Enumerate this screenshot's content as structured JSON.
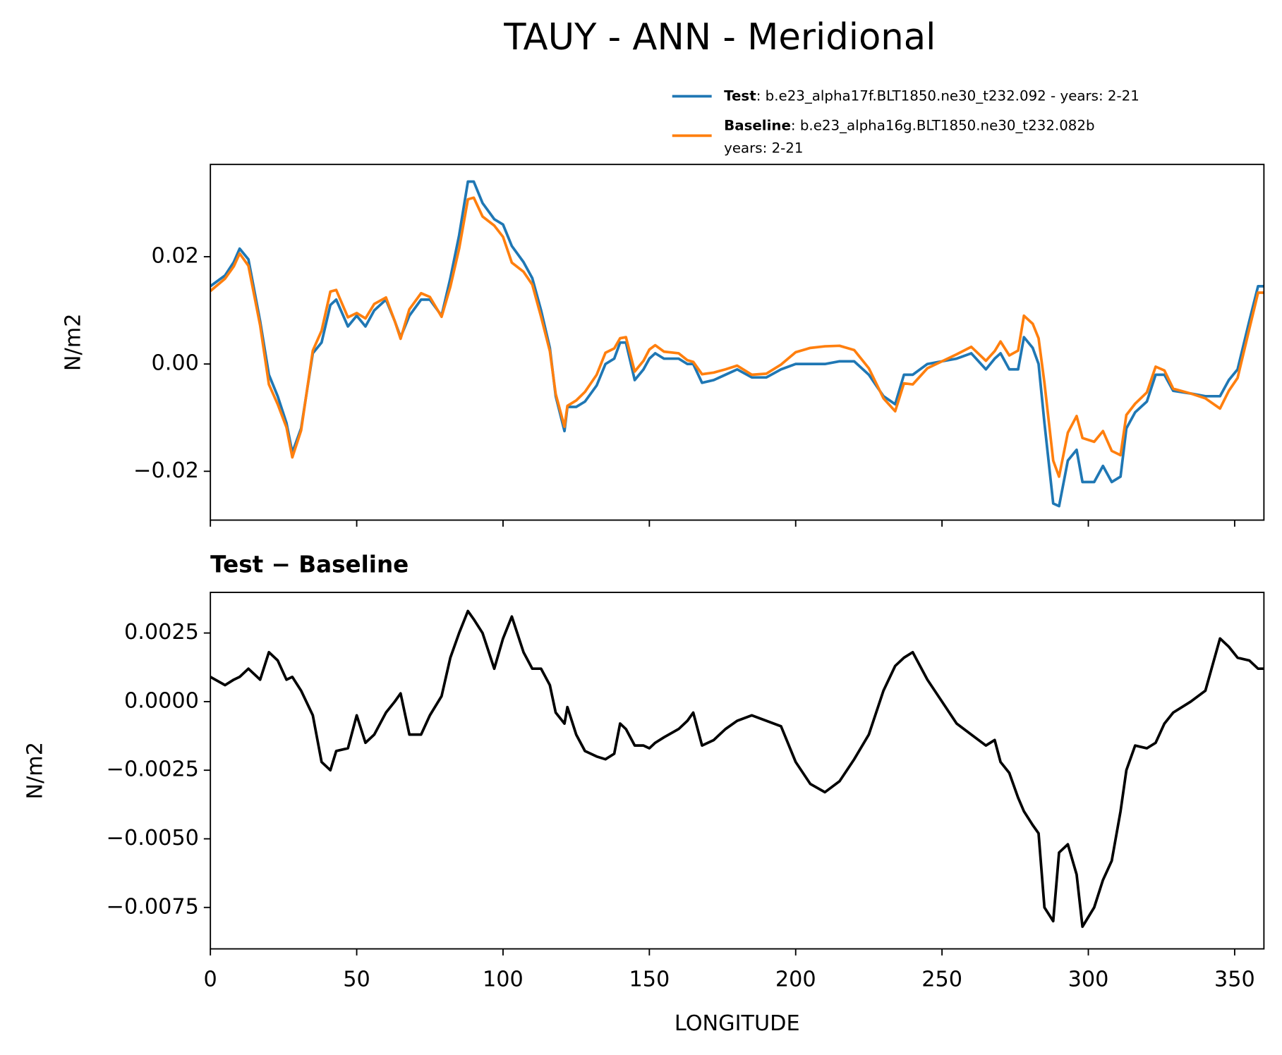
{
  "title": "TAUY - ANN - Meridional",
  "chart_data": [
    {
      "type": "line",
      "ylabel": "N/m2",
      "xlim": [
        0,
        360
      ],
      "xticks": [
        0,
        50,
        100,
        150,
        200,
        250,
        300,
        350
      ],
      "ylim": [
        -0.0291,
        0.0372
      ],
      "yticks": [
        {
          "value": -0.02,
          "label": "−0.02"
        },
        {
          "value": 0,
          "label": "0.00"
        },
        {
          "value": 0.02,
          "label": "0.02"
        }
      ],
      "x": [
        0,
        5,
        8,
        10,
        13,
        17,
        20,
        23,
        26,
        28,
        31,
        35,
        38,
        41,
        43,
        47,
        50,
        53,
        56,
        60,
        63,
        65,
        68,
        72,
        75,
        79,
        82,
        85,
        88,
        90,
        93,
        97,
        100,
        103,
        107,
        110,
        113,
        116,
        118,
        121,
        122,
        125,
        128,
        132,
        135,
        138,
        140,
        142,
        145,
        148,
        150,
        152,
        155,
        160,
        163,
        165,
        168,
        172,
        176,
        180,
        185,
        190,
        195,
        200,
        205,
        210,
        215,
        220,
        225,
        230,
        234,
        237,
        240,
        245,
        250,
        255,
        260,
        265,
        268,
        270,
        273,
        276,
        278,
        281,
        283,
        285,
        288,
        290,
        293,
        296,
        298,
        302,
        305,
        308,
        311,
        313,
        316,
        320,
        323,
        326,
        329,
        335,
        340,
        345,
        348,
        351,
        355,
        358,
        360
      ],
      "series": [
        {
          "name": "Test",
          "description": ": b.e23_alpha17f.BLT1850.ne30_t232.092 - years: 2-21",
          "color": "#1f77b4",
          "values": [
            0.0145,
            0.0165,
            0.019,
            0.0215,
            0.0195,
            0.008,
            -0.002,
            -0.006,
            -0.011,
            -0.0165,
            -0.012,
            0.002,
            0.004,
            0.011,
            0.012,
            0.007,
            0.009,
            0.007,
            0.01,
            0.012,
            0.008,
            0.005,
            0.009,
            0.012,
            0.012,
            0.009,
            0.016,
            0.024,
            0.034,
            0.034,
            0.03,
            0.027,
            0.026,
            0.022,
            0.019,
            0.016,
            0.01,
            0.003,
            -0.006,
            -0.0125,
            -0.008,
            -0.008,
            -0.007,
            -0.004,
            0.0,
            0.001,
            0.004,
            0.004,
            -0.003,
            -0.001,
            0.001,
            0.002,
            0.001,
            0.001,
            0.0,
            0.0,
            -0.0035,
            -0.003,
            -0.002,
            -0.001,
            -0.0025,
            -0.0025,
            -0.001,
            0.0,
            0.0,
            0.0,
            0.0005,
            0.0005,
            -0.002,
            -0.006,
            -0.0075,
            -0.002,
            -0.002,
            0.0,
            0.0005,
            0.001,
            0.002,
            -0.001,
            0.001,
            0.002,
            -0.001,
            -0.001,
            0.005,
            0.003,
            0.0,
            -0.011,
            -0.026,
            -0.0265,
            -0.018,
            -0.016,
            -0.022,
            -0.022,
            -0.019,
            -0.022,
            -0.021,
            -0.012,
            -0.009,
            -0.007,
            -0.002,
            -0.002,
            -0.005,
            -0.0055,
            -0.006,
            -0.006,
            -0.003,
            -0.001,
            0.008,
            0.0145,
            0.0145
          ]
        },
        {
          "name": "Baseline",
          "description": [
            ": b.e23_alpha16g.BLT1850.ne30_t232.082b",
            "years: 2-21"
          ],
          "color": "#ff7f0e",
          "values": [
            0.0136,
            0.0159,
            0.0182,
            0.0206,
            0.0183,
            0.0072,
            -0.0038,
            -0.0075,
            -0.0118,
            -0.0174,
            -0.0124,
            0.0025,
            0.0062,
            0.0135,
            0.0138,
            0.0087,
            0.0095,
            0.0085,
            0.0112,
            0.0124,
            0.008,
            0.0047,
            0.0102,
            0.0132,
            0.0125,
            0.0088,
            0.0144,
            0.0215,
            0.0307,
            0.031,
            0.0275,
            0.0258,
            0.0237,
            0.0189,
            0.0172,
            0.0148,
            0.0088,
            0.0024,
            -0.0056,
            -0.0117,
            -0.0078,
            -0.0068,
            -0.0052,
            -0.002,
            0.0021,
            0.0029,
            0.0048,
            0.005,
            -0.0014,
            0.0006,
            0.0027,
            0.0035,
            0.0023,
            0.002,
            0.0007,
            0.0004,
            -0.0019,
            -0.0016,
            -0.001,
            -0.0003,
            -0.002,
            -0.0018,
            -0.0001,
            0.0022,
            0.003,
            0.0033,
            0.0034,
            0.0026,
            -0.0008,
            -0.0064,
            -0.0088,
            -0.0036,
            -0.0038,
            -0.0008,
            0.0005,
            0.0018,
            0.0032,
            0.0006,
            0.0024,
            0.0042,
            0.0016,
            0.0025,
            0.009,
            0.0075,
            0.0048,
            -0.0035,
            -0.018,
            -0.021,
            -0.0128,
            -0.0097,
            -0.0138,
            -0.0145,
            -0.0125,
            -0.0162,
            -0.017,
            -0.0095,
            -0.0074,
            -0.0053,
            -0.0005,
            -0.0012,
            -0.0046,
            -0.0055,
            -0.0064,
            -0.0083,
            -0.005,
            -0.0026,
            0.0065,
            0.0133,
            0.0133
          ]
        }
      ]
    },
    {
      "type": "line",
      "title": "Test − Baseline",
      "ylabel": "N/m2",
      "xlabel": "LONGITUDE",
      "xlim": [
        0,
        360
      ],
      "xticks": [
        0,
        50,
        100,
        150,
        200,
        250,
        300,
        350
      ],
      "ylim": [
        -0.00901,
        0.00398
      ],
      "yticks": [
        {
          "value": -0.0075,
          "label": "−0.0075"
        },
        {
          "value": -0.005,
          "label": "−0.0050"
        },
        {
          "value": -0.0025,
          "label": "−0.0025"
        },
        {
          "value": 0,
          "label": "0.0000"
        },
        {
          "value": 0.0025,
          "label": "0.0025"
        }
      ],
      "x": [
        0,
        5,
        8,
        10,
        13,
        17,
        20,
        23,
        26,
        28,
        31,
        35,
        38,
        41,
        43,
        47,
        50,
        53,
        56,
        60,
        63,
        65,
        68,
        72,
        75,
        79,
        82,
        85,
        88,
        90,
        93,
        97,
        100,
        103,
        107,
        110,
        113,
        116,
        118,
        121,
        122,
        125,
        128,
        132,
        135,
        138,
        140,
        142,
        145,
        148,
        150,
        152,
        155,
        160,
        163,
        165,
        168,
        172,
        176,
        180,
        185,
        190,
        195,
        200,
        205,
        210,
        215,
        220,
        225,
        230,
        234,
        237,
        240,
        245,
        250,
        255,
        260,
        265,
        268,
        270,
        273,
        276,
        278,
        281,
        283,
        285,
        288,
        290,
        293,
        296,
        298,
        302,
        305,
        308,
        311,
        313,
        316,
        320,
        323,
        326,
        329,
        335,
        340,
        345,
        348,
        351,
        355,
        358,
        360
      ],
      "color": "#000000",
      "values": [
        0.0009,
        0.0006,
        0.0008,
        0.0009,
        0.0012,
        0.0008,
        0.0018,
        0.0015,
        0.0008,
        0.0009,
        0.0004,
        -0.0005,
        -0.0022,
        -0.0025,
        -0.0018,
        -0.0017,
        -0.0005,
        -0.0015,
        -0.0012,
        -0.0004,
        0.0,
        0.0003,
        -0.0012,
        -0.0012,
        -0.0005,
        0.0002,
        0.0016,
        0.0025,
        0.0033,
        0.003,
        0.0025,
        0.0012,
        0.0023,
        0.0031,
        0.0018,
        0.0012,
        0.0012,
        0.0006,
        -0.0004,
        -0.0008,
        -0.0002,
        -0.0012,
        -0.0018,
        -0.002,
        -0.0021,
        -0.0019,
        -0.0008,
        -0.001,
        -0.0016,
        -0.0016,
        -0.0017,
        -0.0015,
        -0.0013,
        -0.001,
        -0.0007,
        -0.0004,
        -0.0016,
        -0.0014,
        -0.001,
        -0.0007,
        -0.0005,
        -0.0007,
        -0.0009,
        -0.0022,
        -0.003,
        -0.0033,
        -0.0029,
        -0.0021,
        -0.0012,
        0.0004,
        0.0013,
        0.0016,
        0.0018,
        0.0008,
        0.0,
        -0.0008,
        -0.0012,
        -0.0016,
        -0.0014,
        -0.0022,
        -0.0026,
        -0.0035,
        -0.004,
        -0.0045,
        -0.0048,
        -0.0075,
        -0.008,
        -0.0055,
        -0.0052,
        -0.0063,
        -0.0082,
        -0.0075,
        -0.0065,
        -0.0058,
        -0.004,
        -0.0025,
        -0.0016,
        -0.0017,
        -0.0015,
        -0.0008,
        -0.0004,
        0.0,
        0.0004,
        0.0023,
        0.002,
        0.0016,
        0.0015,
        0.0012,
        0.0012
      ]
    }
  ]
}
